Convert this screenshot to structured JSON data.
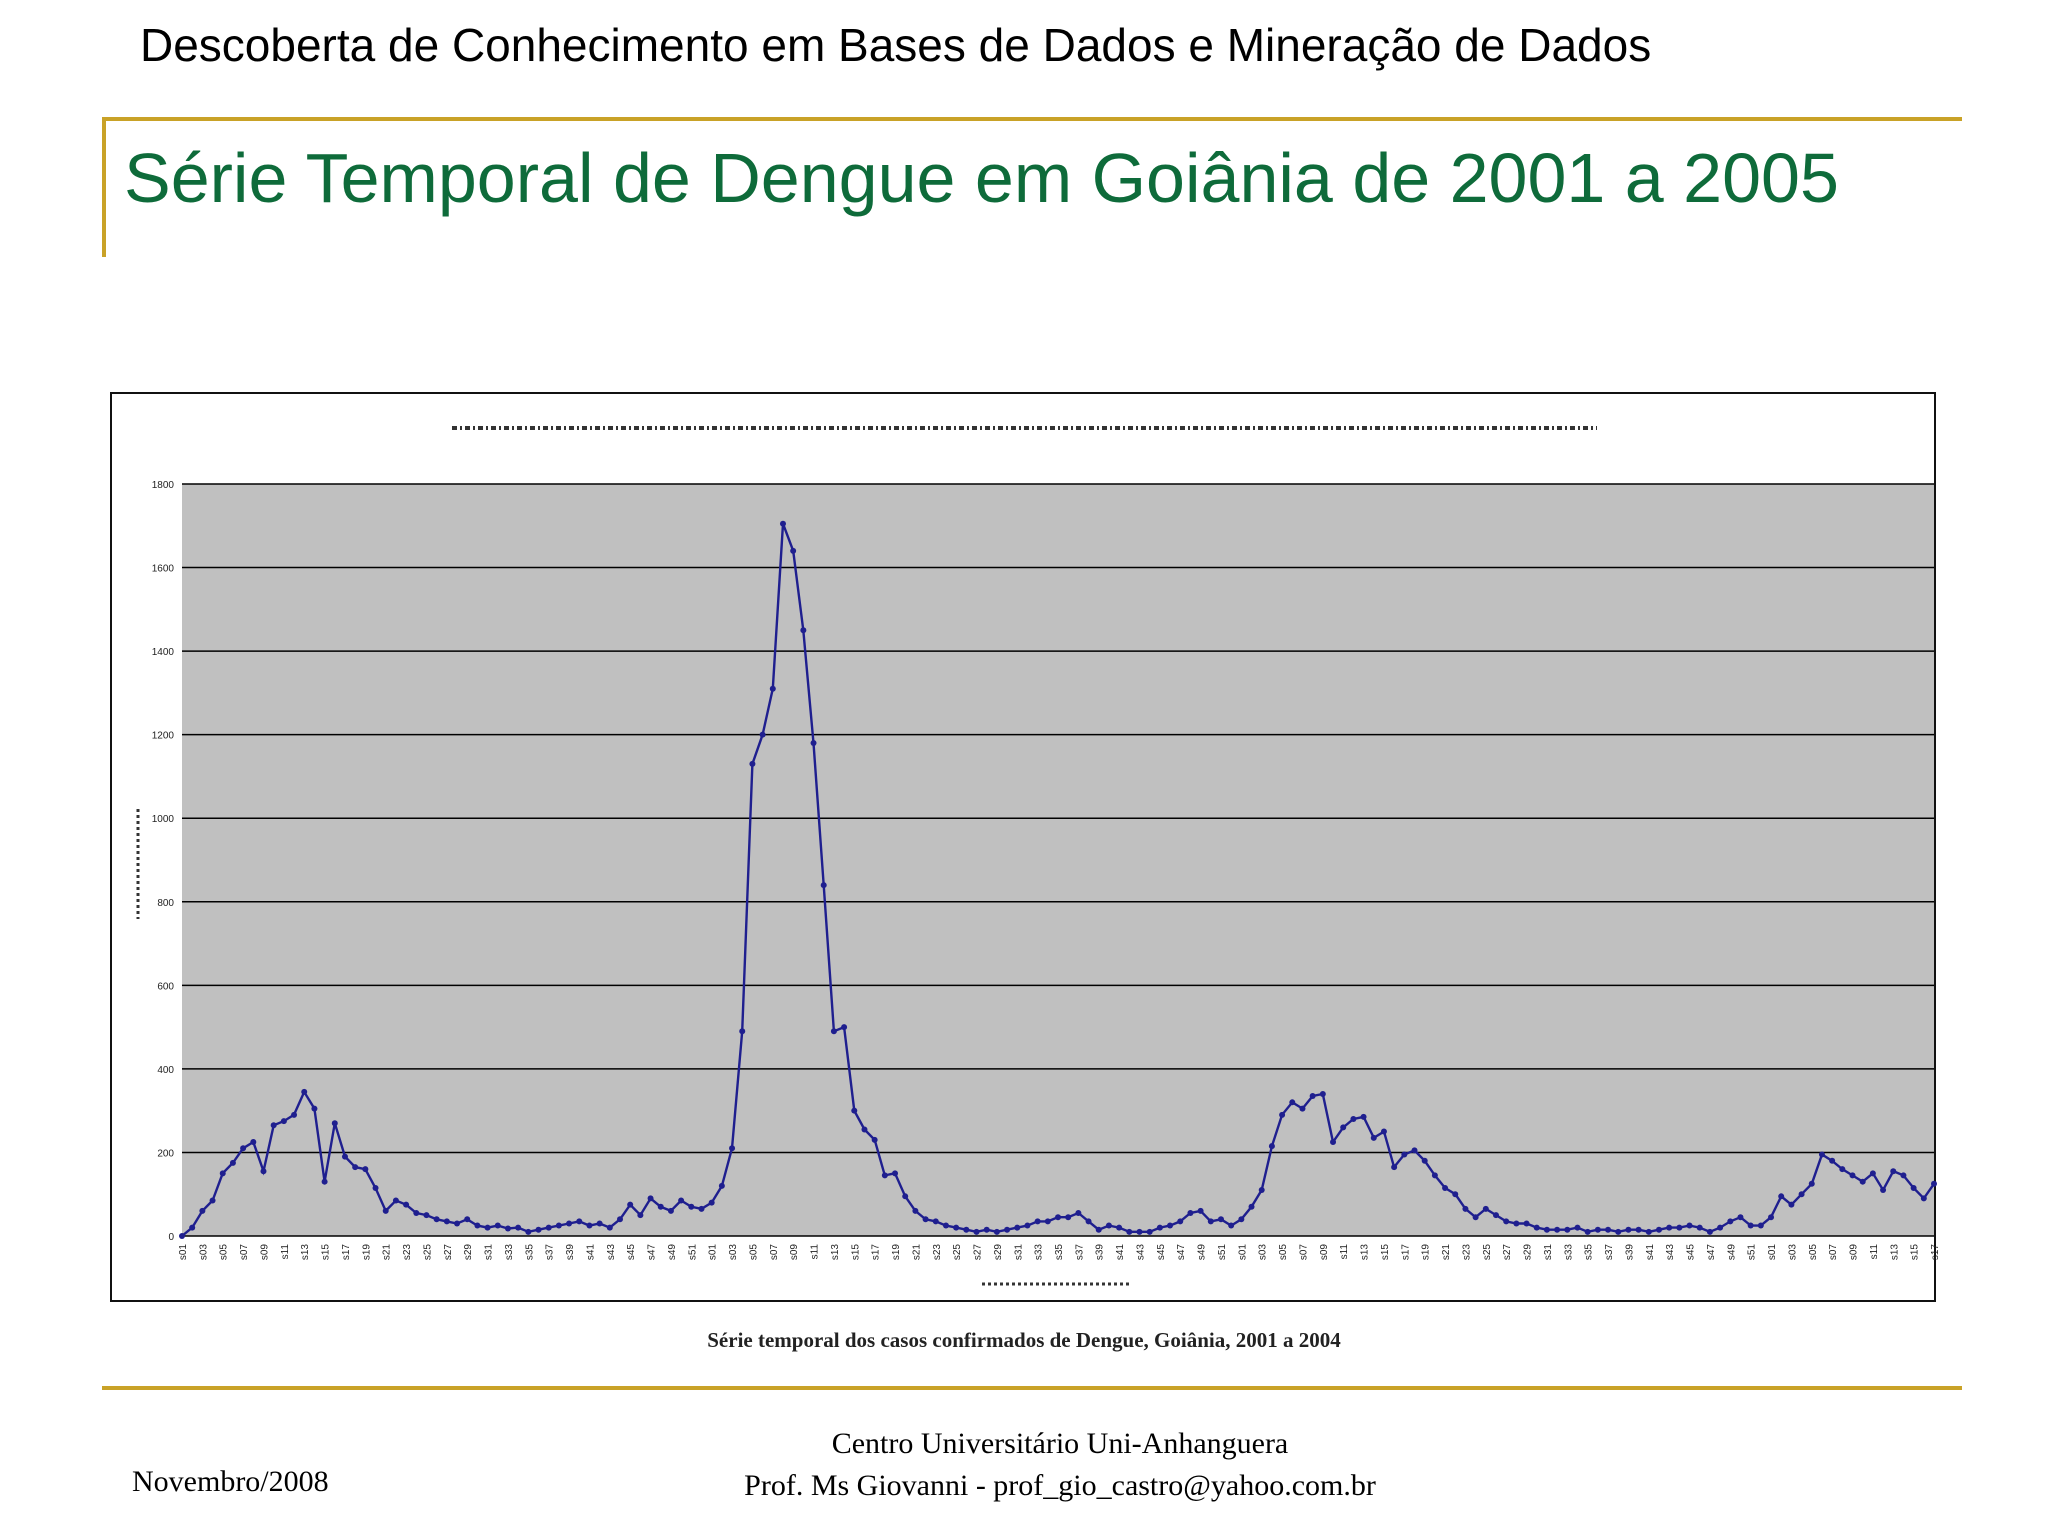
{
  "header": {
    "title": "Descoberta de Conhecimento em Bases de Dados e Mineração de Dados"
  },
  "slide": {
    "title": "Série Temporal de Dengue em Goiânia de 2001 a 2005"
  },
  "chart_data": {
    "type": "line",
    "caption": "Série temporal dos casos confirmados de Dengue, Goiânia, 2001 a 2004",
    "ylim": [
      0,
      1800
    ],
    "y_ticks": [
      "0",
      "200",
      "400",
      "600",
      "800",
      "1000",
      "1200",
      "1400",
      "1600",
      "1800"
    ],
    "x_tick_labels": [
      "s01",
      "s03",
      "s05",
      "s07",
      "s09",
      "s11",
      "s13",
      "s15",
      "s17",
      "s19",
      "s21",
      "s23",
      "s25",
      "s27",
      "s29",
      "s31",
      "s33",
      "s35",
      "s37",
      "s39",
      "s41",
      "s43",
      "s45",
      "s47",
      "s49",
      "s51",
      "s01",
      "s03",
      "s05",
      "s07",
      "s09",
      "s11",
      "s13",
      "s15",
      "s17",
      "s19",
      "s21",
      "s23",
      "s25",
      "s27",
      "s29",
      "s31",
      "s33",
      "s35",
      "s37",
      "s39",
      "s41",
      "s43",
      "s45",
      "s47",
      "s49",
      "s51",
      "s01",
      "s03",
      "s05",
      "s07",
      "s09",
      "s11",
      "s13",
      "s15",
      "s17",
      "s19",
      "s21",
      "s23",
      "s25",
      "s27",
      "s29",
      "s31",
      "s33",
      "s35",
      "s37",
      "s39",
      "s41",
      "s43",
      "s45",
      "s47",
      "s49",
      "s51",
      "s01",
      "s03",
      "s05",
      "s07",
      "s09",
      "s11",
      "s13",
      "s15",
      "s17"
    ],
    "grid": true,
    "plot_background": "#c0c0c0",
    "line_color": "#1f1f8f",
    "series": [
      {
        "values": [
          0,
          20,
          60,
          85,
          150,
          175,
          210,
          225,
          155,
          265,
          275,
          290,
          345,
          305,
          130,
          270,
          190,
          165,
          160,
          115,
          60,
          85,
          75,
          55,
          50,
          40,
          35,
          30,
          40,
          25,
          20,
          25,
          18,
          20,
          10,
          15,
          20,
          25,
          30,
          35,
          25,
          30,
          20,
          40,
          75,
          50,
          90,
          70,
          60,
          85,
          70,
          65,
          80,
          120,
          210,
          490,
          1130,
          1200,
          1310,
          1705,
          1640,
          1450,
          1180,
          840,
          490,
          500,
          300,
          255,
          230,
          145,
          150,
          95,
          60,
          40,
          35,
          25,
          20,
          15,
          10,
          15,
          10,
          15,
          20,
          25,
          35,
          35,
          45,
          45,
          55,
          35,
          15,
          25,
          20,
          10,
          10,
          10,
          20,
          25,
          35,
          55,
          60,
          35,
          40,
          25,
          40,
          70,
          110,
          215,
          290,
          320,
          305,
          335,
          340,
          225,
          260,
          280,
          285,
          235,
          250,
          165,
          195,
          205,
          180,
          145,
          115,
          100,
          65,
          45,
          65,
          50,
          35,
          30,
          30,
          20,
          15,
          15,
          15,
          20,
          10,
          15,
          15,
          10,
          15,
          15,
          10,
          15,
          20,
          20,
          25,
          20,
          10,
          20,
          35,
          45,
          25,
          25,
          45,
          95,
          75,
          100,
          125,
          195,
          180,
          160,
          145,
          130,
          150,
          110,
          155,
          145,
          115,
          90,
          125
        ]
      }
    ]
  }
}
